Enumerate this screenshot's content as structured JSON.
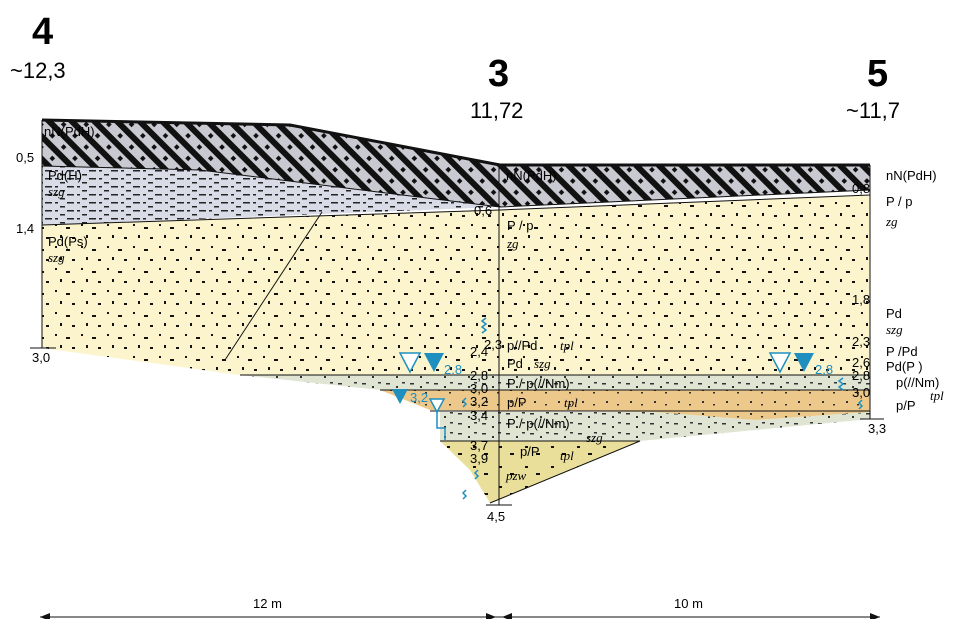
{
  "boreholes": [
    {
      "id": "4",
      "elevation": "~12,3"
    },
    {
      "id": "3",
      "elevation": "11,72"
    },
    {
      "id": "5",
      "elevation": "~11,7"
    }
  ],
  "left_depths": [
    "0,5",
    "1,4",
    "3,0"
  ],
  "mid_depths": [
    "0,6",
    "2,3",
    "2,4",
    "2,8",
    "3,0",
    "3,2",
    "3,4",
    "3,7",
    "3,9",
    "4,5"
  ],
  "right_depths": [
    "0,8",
    "1,8",
    "2,3",
    "2,6",
    "2,8",
    "3,0",
    "3,3"
  ],
  "water_levels": {
    "mid_1": "2,8",
    "mid_2": "3,2",
    "right": "2,8"
  },
  "left_labels": {
    "fill": "nN(PdH)",
    "pdh": "Pd(H)",
    "pdh_mod": "szg",
    "pdps": "Pd(Ps)",
    "pdps_mod": "szg"
  },
  "mid_labels": {
    "fill": "nN(PdH)",
    "pp": "P / p",
    "pp_mod": "zg",
    "ppd": "p//Pd",
    "ppd_mod": "tpl",
    "pd": "Pd",
    "pd_mod": "szg",
    "pnm": "P / p(//Nm)",
    "pp2": "p/P",
    "pp2_mod": "tpl",
    "pnm2": "P / p(//Nm)",
    "pnm2_mod": "szg",
    "pp3": "p/P",
    "pp3_mod": "tpl",
    "pzw": "pzw"
  },
  "right_labels": {
    "fill": "nN(PdH)",
    "pp": "P  /  p",
    "pp_mod": "zg",
    "pd": "Pd",
    "pd_mod": "szg",
    "ppd": "P  /Pd",
    "pdp": "Pd(P  )",
    "pnm": "p(//Nm)",
    "pnm_mod": "tpl",
    "pp2": "p/P"
  },
  "distances": {
    "left": "12 m",
    "right": "10 m"
  },
  "colors": {
    "fill_layer": "#c9c9d1",
    "silt_layer": "#d9dbe6",
    "sand_layer": "#fbf4cc",
    "clay_layer": "#dfe5d2",
    "orange_layer": "#ecc98a",
    "bottom_layer": "#e9df9a",
    "water": "#1f8fc0"
  }
}
